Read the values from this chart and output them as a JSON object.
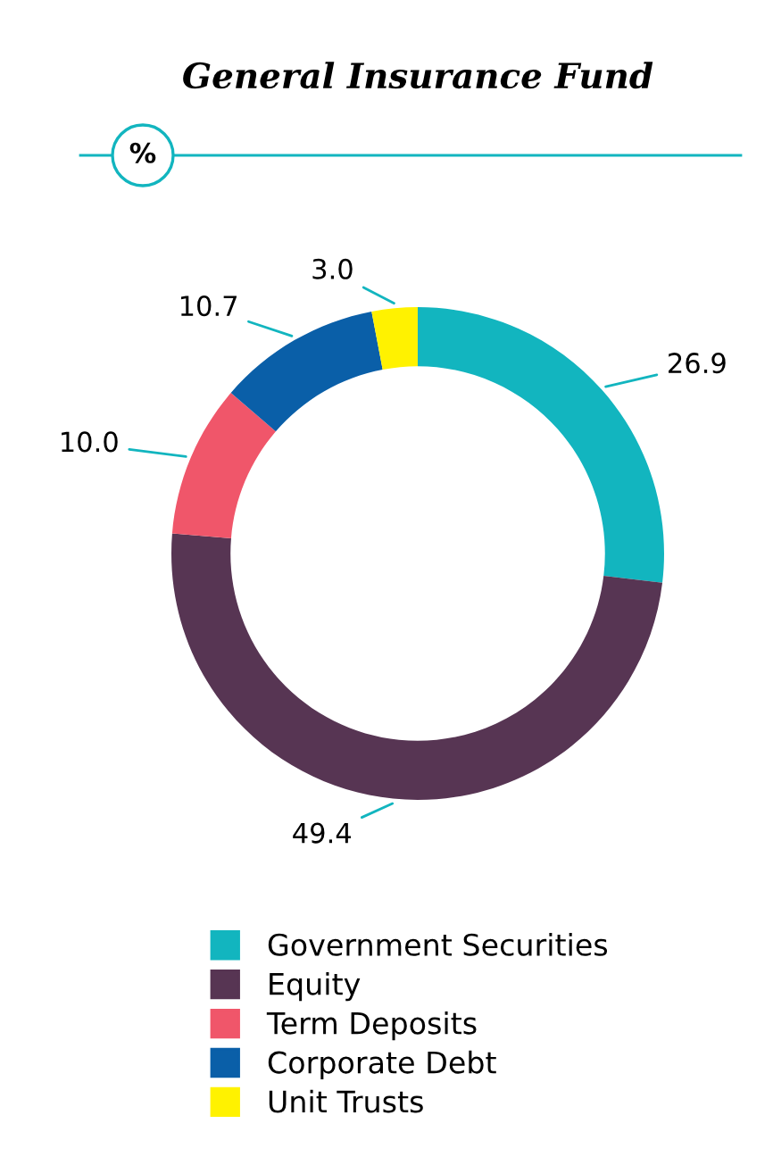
{
  "chart_data": {
    "type": "donut",
    "title": "General Insurance Fund",
    "subtitle": "%",
    "categories": [
      "Government Securities",
      "Equity",
      "Term Deposits",
      "Corporate Debt",
      "Unit Trusts"
    ],
    "values": [
      26.9,
      49.4,
      10.0,
      10.7,
      3.0
    ],
    "colors": [
      "#12b5bf",
      "#573553",
      "#f0566a",
      "#0a5fa8",
      "#fff200"
    ],
    "value_labels": [
      "26.9",
      "49.4",
      "10.0",
      "10.7",
      "3.0"
    ],
    "legend": "bottom"
  }
}
